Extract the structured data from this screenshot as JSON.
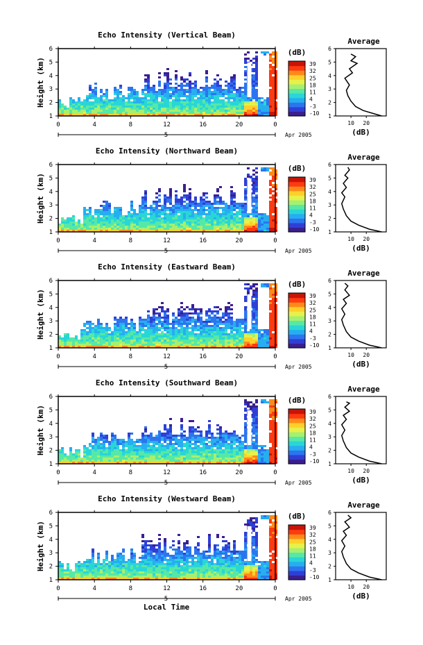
{
  "panels": [
    {
      "title": "Echo Intensity (Vertical Beam)",
      "avg_profile": [
        [
          30,
          1.0
        ],
        [
          24,
          1.2
        ],
        [
          18,
          1.4
        ],
        [
          13,
          1.7
        ],
        [
          10,
          2.1
        ],
        [
          8,
          2.5
        ],
        [
          7,
          2.9
        ],
        [
          9,
          3.3
        ],
        [
          6,
          3.8
        ],
        [
          11,
          4.2
        ],
        [
          9,
          4.5
        ],
        [
          14,
          4.9
        ],
        [
          10,
          5.1
        ],
        [
          13,
          5.4
        ],
        [
          10,
          5.6
        ]
      ]
    },
    {
      "title": "Echo Intensity (Northward Beam)",
      "avg_profile": [
        [
          30,
          1.0
        ],
        [
          22,
          1.2
        ],
        [
          15,
          1.5
        ],
        [
          10,
          1.8
        ],
        [
          7,
          2.2
        ],
        [
          5,
          2.7
        ],
        [
          4,
          3.1
        ],
        [
          6,
          3.6
        ],
        [
          4,
          3.9
        ],
        [
          7,
          4.3
        ],
        [
          5,
          4.6
        ],
        [
          8,
          5.0
        ],
        [
          6,
          5.2
        ],
        [
          9,
          5.6
        ],
        [
          8,
          5.8
        ]
      ]
    },
    {
      "title": "Echo Intensity (Eastward Beam)",
      "avg_profile": [
        [
          30,
          1.0
        ],
        [
          22,
          1.2
        ],
        [
          15,
          1.5
        ],
        [
          10,
          1.8
        ],
        [
          7,
          2.2
        ],
        [
          5,
          2.7
        ],
        [
          4,
          3.1
        ],
        [
          6,
          3.5
        ],
        [
          4,
          3.9
        ],
        [
          7,
          4.3
        ],
        [
          5,
          4.6
        ],
        [
          9,
          4.9
        ],
        [
          6,
          5.3
        ],
        [
          8,
          5.6
        ],
        [
          6,
          5.8
        ]
      ]
    },
    {
      "title": "Echo Intensity (Southward Beam)",
      "avg_profile": [
        [
          30,
          1.0
        ],
        [
          22,
          1.2
        ],
        [
          15,
          1.5
        ],
        [
          10,
          1.8
        ],
        [
          7,
          2.2
        ],
        [
          5,
          2.7
        ],
        [
          4,
          3.1
        ],
        [
          6,
          3.5
        ],
        [
          4,
          3.9
        ],
        [
          7,
          4.3
        ],
        [
          5,
          4.6
        ],
        [
          9,
          4.9
        ],
        [
          6,
          5.2
        ],
        [
          9,
          5.5
        ],
        [
          7,
          5.6
        ]
      ]
    },
    {
      "title": "Echo Intensity (Westward Beam)",
      "avg_profile": [
        [
          30,
          1.0
        ],
        [
          22,
          1.2
        ],
        [
          15,
          1.5
        ],
        [
          10,
          1.8
        ],
        [
          7,
          2.2
        ],
        [
          5,
          2.7
        ],
        [
          4,
          3.1
        ],
        [
          6,
          3.5
        ],
        [
          4,
          3.9
        ],
        [
          7,
          4.3
        ],
        [
          5,
          4.6
        ],
        [
          9,
          4.9
        ],
        [
          6,
          5.3
        ],
        [
          10,
          5.6
        ],
        [
          8,
          5.8
        ]
      ]
    }
  ],
  "chart_data": {
    "type": "heatmap",
    "ylabel": "Height (km)",
    "xlabel": "Local Time",
    "x_ticks": [
      "0",
      "4",
      "8",
      "12",
      "16",
      "20",
      "0"
    ],
    "xlim": [
      0,
      24
    ],
    "y_ticks": [
      "1",
      "2",
      "3",
      "4",
      "5",
      "6"
    ],
    "ylim": [
      1,
      6
    ],
    "date_marker": "5",
    "date_label": "Apr 2005",
    "colorbar": {
      "unit": "(dB)",
      "ticks": [
        "39",
        "32",
        "25",
        "18",
        "11",
        "4",
        "-3",
        "-10"
      ],
      "range": [
        -10,
        39
      ],
      "colors": [
        "#3a1f8f",
        "#2f3fd6",
        "#2c75ef",
        "#26aef0",
        "#29d6d6",
        "#56e8a6",
        "#a6f070",
        "#e8f04a",
        "#ffd02a",
        "#ff8a1a",
        "#ff3a10",
        "#c81408"
      ]
    },
    "average": {
      "title": "Average",
      "xlabel": "(dB)",
      "x_ticks": [
        "10",
        "20"
      ],
      "xlim": [
        0,
        33
      ],
      "ylim": [
        1,
        6
      ],
      "y_ticks": [
        "1",
        "2",
        "3",
        "4",
        "5",
        "6"
      ]
    }
  }
}
